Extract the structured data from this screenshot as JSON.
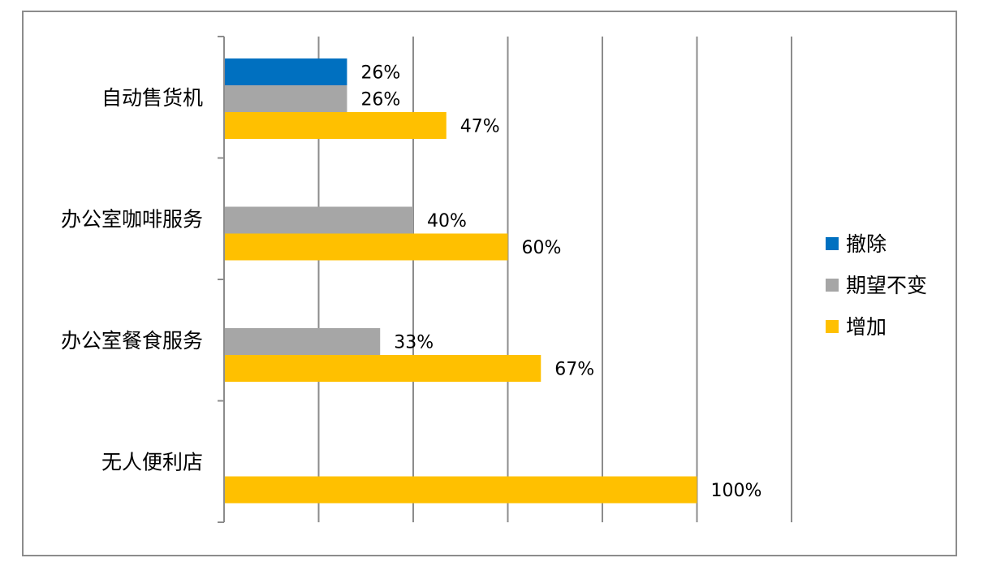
{
  "chart_data": {
    "type": "bar",
    "orientation": "horizontal",
    "categories": [
      "自动售货机",
      "办公室咖啡服务",
      "办公室餐食服务",
      "无人便利店"
    ],
    "series": [
      {
        "name": "撤除",
        "color": "#0070C0",
        "values": [
          26,
          null,
          null,
          null
        ]
      },
      {
        "name": "期望不变",
        "color": "#A6A6A6",
        "values": [
          26,
          40,
          33,
          null
        ]
      },
      {
        "name": "增加",
        "color": "#FFC000",
        "values": [
          47,
          60,
          67,
          100
        ]
      }
    ],
    "data_labels": [
      [
        "26%",
        null,
        null,
        null
      ],
      [
        "26%",
        "40%",
        "33%",
        null
      ],
      [
        "47%",
        "60%",
        "67%",
        "100%"
      ]
    ],
    "xlim": [
      0,
      120
    ],
    "grid": true,
    "legend_position": "right"
  }
}
